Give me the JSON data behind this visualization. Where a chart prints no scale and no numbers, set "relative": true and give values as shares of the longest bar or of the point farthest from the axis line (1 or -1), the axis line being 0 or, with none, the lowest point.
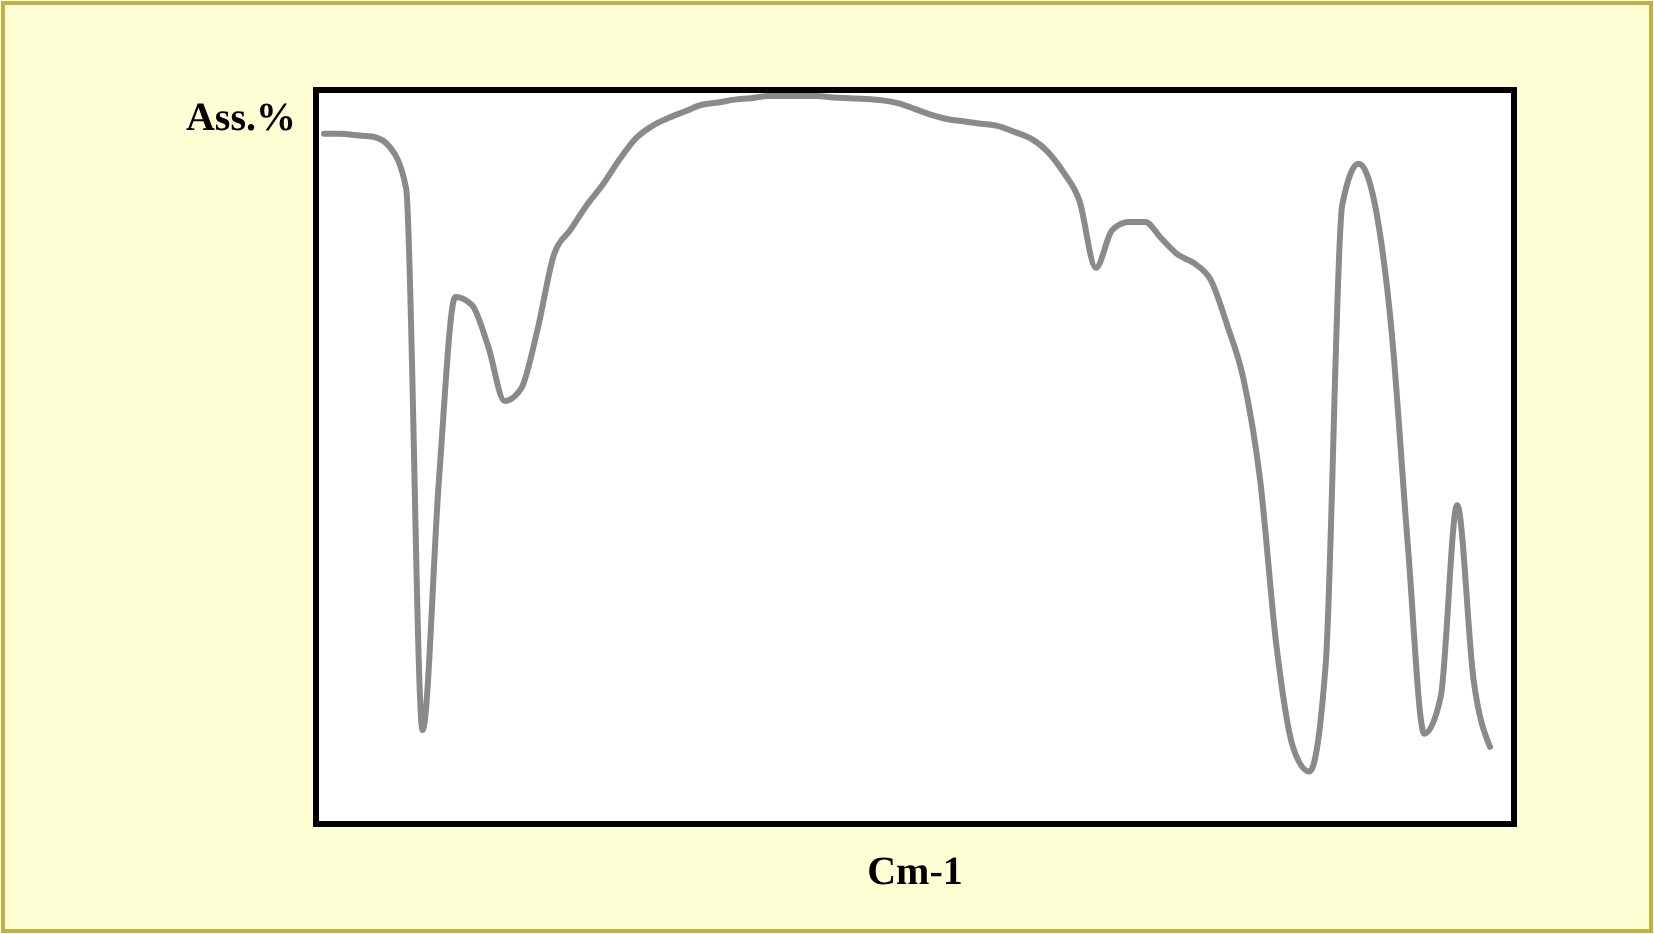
{
  "chart_data": {
    "type": "line",
    "relative": true,
    "xlabel": "Cm-1",
    "ylabel": "Ass.%",
    "color": "#8a8a8a",
    "categories": [
      null,
      null,
      null,
      null,
      null,
      null,
      null,
      null,
      null,
      null,
      null,
      null,
      null,
      null,
      null,
      null,
      null,
      null,
      null,
      null,
      null,
      null,
      null,
      null,
      null,
      null,
      null,
      null,
      null,
      null,
      null,
      null,
      null,
      null,
      null,
      null,
      null,
      null,
      null,
      null,
      null,
      null,
      null,
      null,
      null,
      null,
      null,
      null,
      null,
      null,
      null,
      null,
      null,
      null,
      null,
      null,
      null,
      null,
      null,
      null,
      null,
      null,
      null,
      null,
      null,
      null,
      null,
      null,
      null,
      null,
      null,
      null
    ],
    "values": [
      0.948,
      0.948,
      0.946,
      0.944,
      0.93,
      0.873,
      0.129,
      0.473,
      0.724,
      0.713,
      0.656,
      0.581,
      0.598,
      0.679,
      0.782,
      0.816,
      0.85,
      0.879,
      0.913,
      0.942,
      0.959,
      0.97,
      0.979,
      0.988,
      0.991,
      0.995,
      0.997,
      1,
      1,
      1,
      1,
      0.998,
      0.997,
      0.996,
      0.994,
      0.99,
      0.982,
      0.974,
      0.968,
      0.965,
      0.962,
      0.959,
      0.951,
      0.942,
      0.925,
      0.896,
      0.856,
      0.764,
      0.816,
      0.827,
      0.827,
      0.804,
      0.782,
      0.77,
      0.747,
      0.685,
      0.61,
      0.473,
      0.244,
      0.106,
      0.072,
      0.221,
      0.85,
      0.907,
      0.85,
      0.679,
      0.382,
      0.124,
      0.175,
      0.438,
      0.198,
      0.106
    ]
  }
}
